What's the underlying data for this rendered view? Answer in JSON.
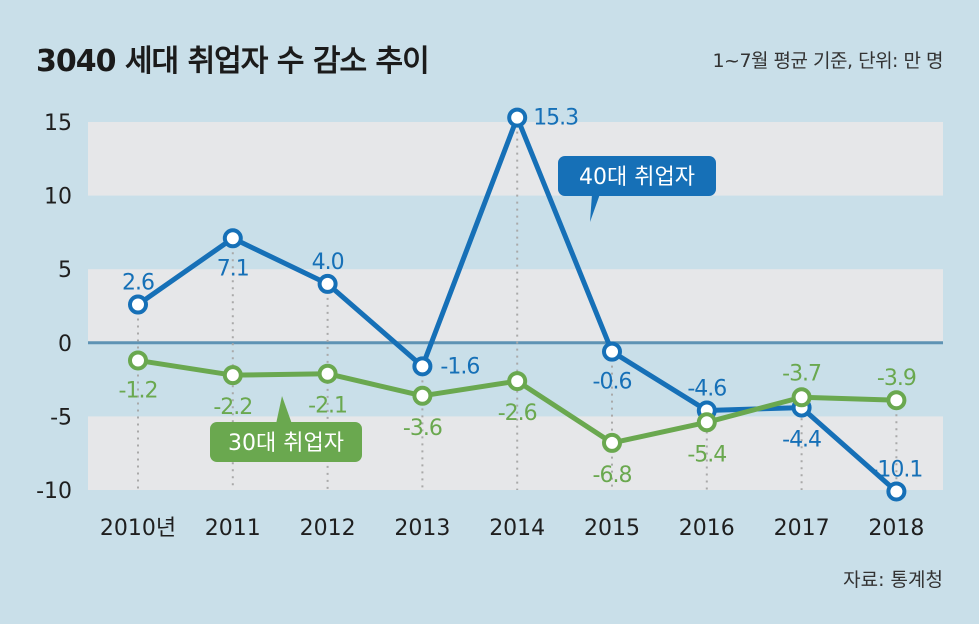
{
  "header": {
    "title": "3040 세대 취업자 수 감소 추이",
    "unit_note": "1~7월 평균 기준, 단위: 만 명"
  },
  "footer": {
    "source": "자료: 통계청"
  },
  "colors": {
    "background": "#c9dfe9",
    "band": "#e6e7e9",
    "zero_line": "#5e93b4",
    "series_40": "#1670b7",
    "series_30": "#6aa84f",
    "guide": "#a9a9a9"
  },
  "chart_data": {
    "type": "line",
    "categories": [
      "2010년",
      "2011",
      "2012",
      "2013",
      "2014",
      "2015",
      "2016",
      "2017",
      "2018"
    ],
    "ylim": [
      -10,
      15
    ],
    "yticks": [
      "15",
      "10",
      "5",
      "0",
      "-5",
      "-10"
    ],
    "series": [
      {
        "name": "40대 취업자",
        "values": [
          2.6,
          7.1,
          4.0,
          -1.6,
          15.3,
          -0.6,
          -4.6,
          -4.4,
          -10.1
        ],
        "labels": [
          "2.6",
          "7.1",
          "4.0",
          "-1.6",
          "15.3",
          "-0.6",
          "-4.6",
          "-4.4",
          "-10.1"
        ]
      },
      {
        "name": "30대 취업자",
        "values": [
          -1.2,
          -2.2,
          -2.1,
          -3.6,
          -2.6,
          -6.8,
          -5.4,
          -3.7,
          -3.9
        ],
        "labels": [
          "-1.2",
          "-2.2",
          "-2.1",
          "-3.6",
          "-2.6",
          "-6.8",
          "-5.4",
          "-3.7",
          "-3.9"
        ]
      }
    ]
  }
}
